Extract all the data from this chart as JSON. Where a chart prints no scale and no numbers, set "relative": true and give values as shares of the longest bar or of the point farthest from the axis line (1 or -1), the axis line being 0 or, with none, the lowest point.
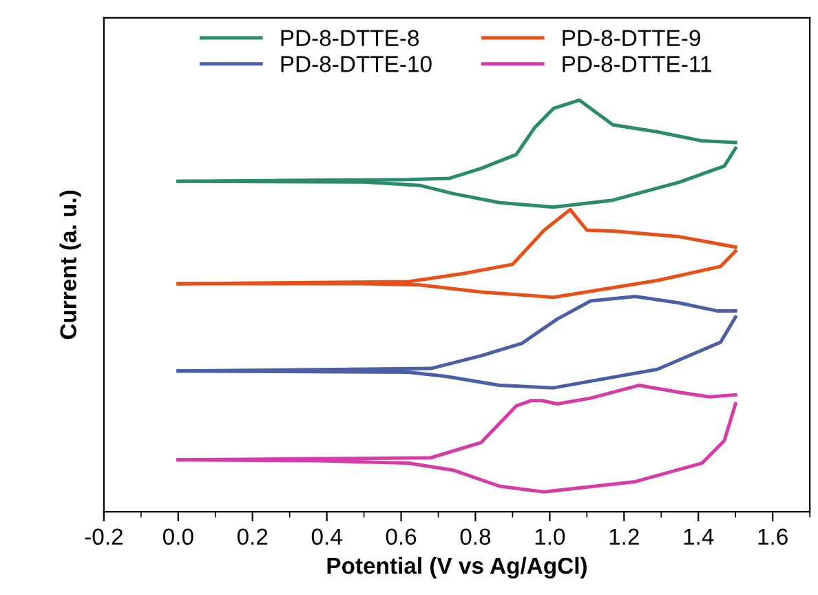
{
  "chart_data": {
    "type": "line",
    "relative": true,
    "xlabel": "Potential (V vs Ag/AgCl)",
    "ylabel": "Current (a. u.)",
    "xlim": [
      -0.2,
      1.7
    ],
    "xticks": [
      -0.2,
      {
        "value": 0,
        "label": "0.0"
      },
      0.2,
      0.4,
      0.6,
      0.8,
      {
        "value": 1,
        "label": "1.0"
      },
      1.2,
      1.4,
      1.6
    ],
    "tick_labels": "x",
    "grid": false,
    "legend": "top",
    "marker": "none",
    "line_style": "solid",
    "series": [
      {
        "name": "PD-8-DTTE-8",
        "color": "#2a8c6c",
        "x": [
          0,
          0.62,
          0.73,
          0.815,
          0.91,
          0.96,
          1.01,
          1.08,
          1.17,
          1.29,
          1.41,
          1.5
        ],
        "values": [
          0.803,
          0.807,
          0.81,
          0.834,
          0.868,
          0.934,
          0.98,
          1.0,
          0.94,
          0.923,
          0.901,
          0.897
        ]
      },
      {
        "color": "#2a8c6c",
        "x": [
          0,
          0.5,
          0.65,
          0.74,
          0.865,
          1.01,
          1.17,
          1.35,
          1.47,
          1.5
        ],
        "values": [
          0.803,
          0.801,
          0.793,
          0.773,
          0.751,
          0.74,
          0.757,
          0.801,
          0.84,
          0.883
        ]
      },
      {
        "name": "PD-8-DTTE-9",
        "color": "#e8501a",
        "x": [
          0,
          0.62,
          0.77,
          0.9,
          0.985,
          1.055,
          1.1,
          1.17,
          1.35,
          1.5
        ],
        "values": [
          0.554,
          0.559,
          0.579,
          0.601,
          0.684,
          0.734,
          0.684,
          0.682,
          0.668,
          0.643
        ]
      },
      {
        "color": "#e8501a",
        "x": [
          0,
          0.5,
          0.65,
          0.815,
          1.01,
          1.29,
          1.46,
          1.5
        ],
        "values": [
          0.554,
          0.554,
          0.551,
          0.534,
          0.521,
          0.562,
          0.596,
          0.633
        ]
      },
      {
        "name": "PD-8-DTTE-10",
        "color": "#4a5fa5",
        "x": [
          0,
          0.68,
          0.815,
          0.925,
          1.02,
          1.11,
          1.23,
          1.35,
          1.45,
          1.5
        ],
        "values": [
          0.342,
          0.348,
          0.379,
          0.409,
          0.468,
          0.512,
          0.523,
          0.507,
          0.488,
          0.488
        ]
      },
      {
        "color": "#4a5fa5",
        "x": [
          0,
          0.62,
          0.72,
          0.865,
          1.01,
          1.29,
          1.46,
          1.5
        ],
        "values": [
          0.342,
          0.339,
          0.329,
          0.307,
          0.301,
          0.346,
          0.412,
          0.473
        ]
      },
      {
        "name": "PD-8-DTTE-11",
        "color": "#d63ca8",
        "x": [
          0,
          0.68,
          0.815,
          0.91,
          0.95,
          0.98,
          1.02,
          1.11,
          1.24,
          1.35,
          1.43,
          1.5
        ],
        "values": [
          0.126,
          0.131,
          0.168,
          0.257,
          0.27,
          0.27,
          0.262,
          0.276,
          0.307,
          0.29,
          0.279,
          0.284
        ]
      },
      {
        "color": "#d63ca8",
        "x": [
          0,
          0.38,
          0.62,
          0.74,
          0.865,
          0.985,
          1.23,
          1.41,
          1.47,
          1.5
        ],
        "values": [
          0.126,
          0.124,
          0.118,
          0.101,
          0.062,
          0.048,
          0.073,
          0.118,
          0.173,
          0.262
        ]
      }
    ]
  }
}
